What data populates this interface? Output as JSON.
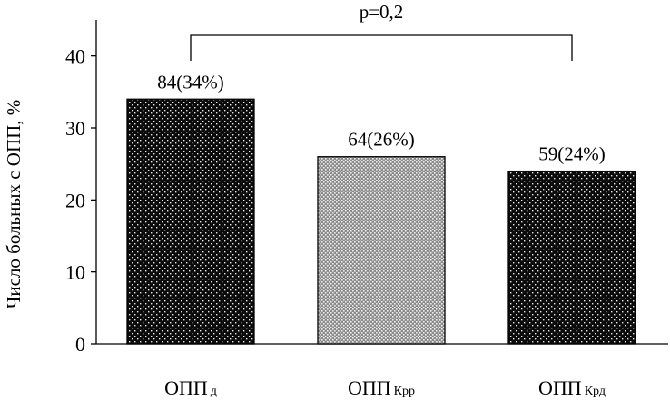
{
  "chart_data": {
    "type": "bar",
    "title": "",
    "xlabel": "",
    "ylabel": "Число больных с ОПП, %",
    "ylim": [
      0,
      45
    ],
    "yticks": [
      0,
      10,
      20,
      30,
      40
    ],
    "grid": false,
    "categories": [
      {
        "main": "ОПП",
        "sub": "д"
      },
      {
        "main": "ОПП",
        "sub": "Крр"
      },
      {
        "main": "ОПП",
        "sub": "Крд"
      }
    ],
    "values": [
      34,
      26,
      24
    ],
    "data_labels": [
      "84(34%)",
      "64(26%)",
      "59(24%)"
    ],
    "annotation": {
      "text": "p=0,2",
      "from_category": 0,
      "to_category": 2
    },
    "bar_styles": [
      {
        "fill": "#0b0b0b",
        "dots": "#e6e6e6"
      },
      {
        "fill": "#8c8c8c",
        "dots": "#ececec"
      },
      {
        "fill": "#0b0b0b",
        "dots": "#e6e6e6"
      }
    ]
  }
}
